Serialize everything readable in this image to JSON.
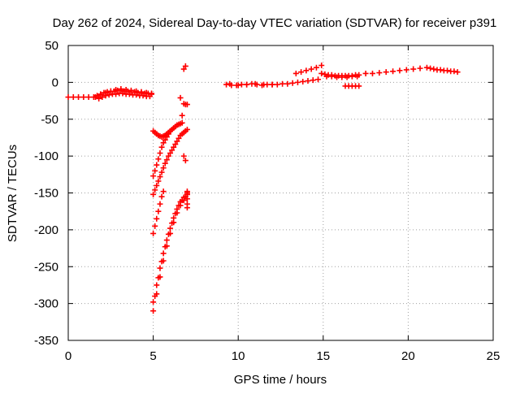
{
  "chart_data": {
    "type": "scatter",
    "title": "Day 262 of 2024, Sidereal Day-to-day VTEC variation (SDTVAR) for receiver p391",
    "xlabel": "GPS time / hours",
    "ylabel": "SDTVAR / TECUs",
    "xlim": [
      0,
      25
    ],
    "ylim": [
      -350,
      50
    ],
    "xticks": [
      "0",
      "5",
      "10",
      "15",
      "20",
      "25"
    ],
    "yticks": [
      "50",
      "0",
      "-50",
      "-100",
      "-150",
      "-200",
      "-250",
      "-300",
      "-350"
    ],
    "grid": true,
    "legend": "none",
    "marker": "+",
    "colors": {
      "series": "#ff0000",
      "grid": "#a0a0a0",
      "axis": "#000000"
    },
    "series": [
      {
        "name": "SDTVAR",
        "x": [
          0.0,
          0.3,
          0.6,
          0.9,
          1.2,
          1.5,
          1.7,
          1.9,
          2.1,
          2.3,
          2.5,
          2.7,
          2.9,
          3.1,
          3.3,
          3.5,
          3.7,
          3.9,
          4.1,
          4.3,
          4.5,
          4.7,
          4.9,
          1.8,
          2.0,
          2.2,
          2.4,
          2.6,
          2.8,
          3.0,
          3.2,
          3.4,
          3.6,
          3.8,
          4.0,
          4.2,
          4.4,
          4.6,
          4.8,
          1.6,
          1.9,
          2.2,
          2.5,
          2.8,
          3.1,
          3.4,
          3.7,
          4.0,
          4.3,
          4.6,
          4.9,
          5.0,
          5.1,
          5.2,
          5.3,
          5.4,
          5.5,
          5.6,
          5.7,
          5.8,
          5.9,
          6.0,
          6.1,
          6.2,
          6.3,
          6.4,
          6.5,
          6.6,
          6.7,
          6.8,
          6.9,
          6.8,
          6.9,
          7.0,
          6.6,
          6.7,
          6.8,
          6.9,
          5.0,
          5.1,
          5.2,
          5.3,
          5.4,
          5.5,
          5.6,
          5.7,
          5.8,
          5.9,
          5.0,
          5.1,
          5.2,
          5.3,
          5.4,
          5.5,
          5.6,
          5.7,
          5.8,
          5.9,
          6.0,
          6.1,
          6.2,
          6.3,
          6.4,
          6.5,
          6.6,
          6.7,
          6.8,
          6.9,
          7.0,
          5.0,
          5.1,
          5.2,
          5.3,
          5.4,
          5.5,
          5.6,
          5.0,
          5.2,
          5.4,
          5.6,
          5.8,
          6.0,
          6.2,
          6.4,
          6.6,
          6.8,
          7.0,
          5.1,
          5.3,
          5.5,
          5.7,
          5.9,
          6.1,
          6.3,
          6.5,
          6.7,
          6.9,
          5.0,
          5.2,
          5.4,
          5.6,
          5.8,
          6.0,
          6.2,
          6.4,
          6.6,
          6.8,
          7.0,
          7.0,
          7.0,
          7.0,
          7.0,
          7.0,
          9.3,
          9.6,
          9.9,
          10.2,
          10.5,
          10.8,
          11.1,
          11.4,
          11.7,
          12.0,
          12.3,
          12.6,
          12.9,
          13.2,
          13.5,
          13.8,
          14.1,
          14.4,
          14.7,
          9.5,
          10.0,
          10.5,
          11.0,
          11.5,
          12.0,
          13.4,
          13.7,
          14.0,
          14.3,
          14.6,
          14.9,
          14.9,
          15.1,
          15.3,
          15.5,
          15.7,
          15.9,
          16.1,
          16.3,
          16.5,
          16.7,
          16.9,
          17.1,
          15.2,
          15.5,
          15.8,
          16.1,
          16.4,
          16.7,
          17.0,
          16.3,
          16.5,
          16.7,
          16.9,
          17.1,
          17.5,
          17.9,
          18.3,
          18.7,
          19.1,
          19.5,
          19.9,
          20.3,
          20.7,
          21.1,
          21.3,
          21.5,
          21.7,
          21.9,
          22.1,
          22.3,
          22.5,
          22.7,
          22.9
        ],
        "y": [
          -20,
          -20,
          -20,
          -20,
          -20,
          -20,
          -18,
          -16,
          -14,
          -13,
          -12,
          -12,
          -11,
          -11,
          -12,
          -12,
          -13,
          -13,
          -14,
          -14,
          -15,
          -15,
          -16,
          -22,
          -20,
          -18,
          -17,
          -16,
          -16,
          -15,
          -15,
          -16,
          -16,
          -17,
          -17,
          -18,
          -18,
          -19,
          -19,
          -20,
          -17,
          -14,
          -12,
          -10,
          -9,
          -10,
          -11,
          -12,
          -13,
          -14,
          -15,
          -66,
          -68,
          -70,
          -72,
          -73,
          -74,
          -73,
          -72,
          -70,
          -68,
          -66,
          -64,
          -62,
          -60,
          -58,
          -57,
          -56,
          -55,
          18,
          22,
          -29,
          -30,
          -30,
          -21,
          -45,
          -100,
          -106,
          -127,
          -120,
          -112,
          -104,
          -96,
          -88,
          -82,
          -78,
          -74,
          -70,
          -152,
          -146,
          -140,
          -134,
          -128,
          -122,
          -116,
          -110,
          -105,
          -100,
          -96,
          -92,
          -88,
          -84,
          -80,
          -76,
          -72,
          -70,
          -68,
          -66,
          -64,
          -205,
          -195,
          -185,
          -175,
          -165,
          -155,
          -148,
          -298,
          -275,
          -252,
          -232,
          -214,
          -198,
          -184,
          -172,
          -162,
          -156,
          -152,
          -290,
          -265,
          -243,
          -223,
          -206,
          -191,
          -178,
          -167,
          -160,
          -155,
          -310,
          -287,
          -264,
          -242,
          -222,
          -205,
          -190,
          -177,
          -167,
          -160,
          -170,
          -165,
          -158,
          -152,
          -150,
          -148,
          -3,
          -4,
          -4,
          -3,
          -3,
          -2,
          -3,
          -4,
          -3,
          -3,
          -3,
          -2,
          -2,
          -1,
          0,
          1,
          2,
          3,
          4,
          -2,
          -4,
          -3,
          -2,
          -3,
          -3,
          12,
          14,
          16,
          18,
          20,
          23,
          12,
          11,
          10,
          10,
          9,
          9,
          9,
          9,
          9,
          9,
          10,
          10,
          8,
          8,
          7,
          7,
          7,
          8,
          8,
          -5,
          -5,
          -5,
          -5,
          -5,
          12,
          12,
          13,
          14,
          15,
          16,
          17,
          18,
          19,
          20,
          19,
          18,
          17,
          17,
          16,
          16,
          15,
          15,
          14
        ]
      }
    ]
  }
}
